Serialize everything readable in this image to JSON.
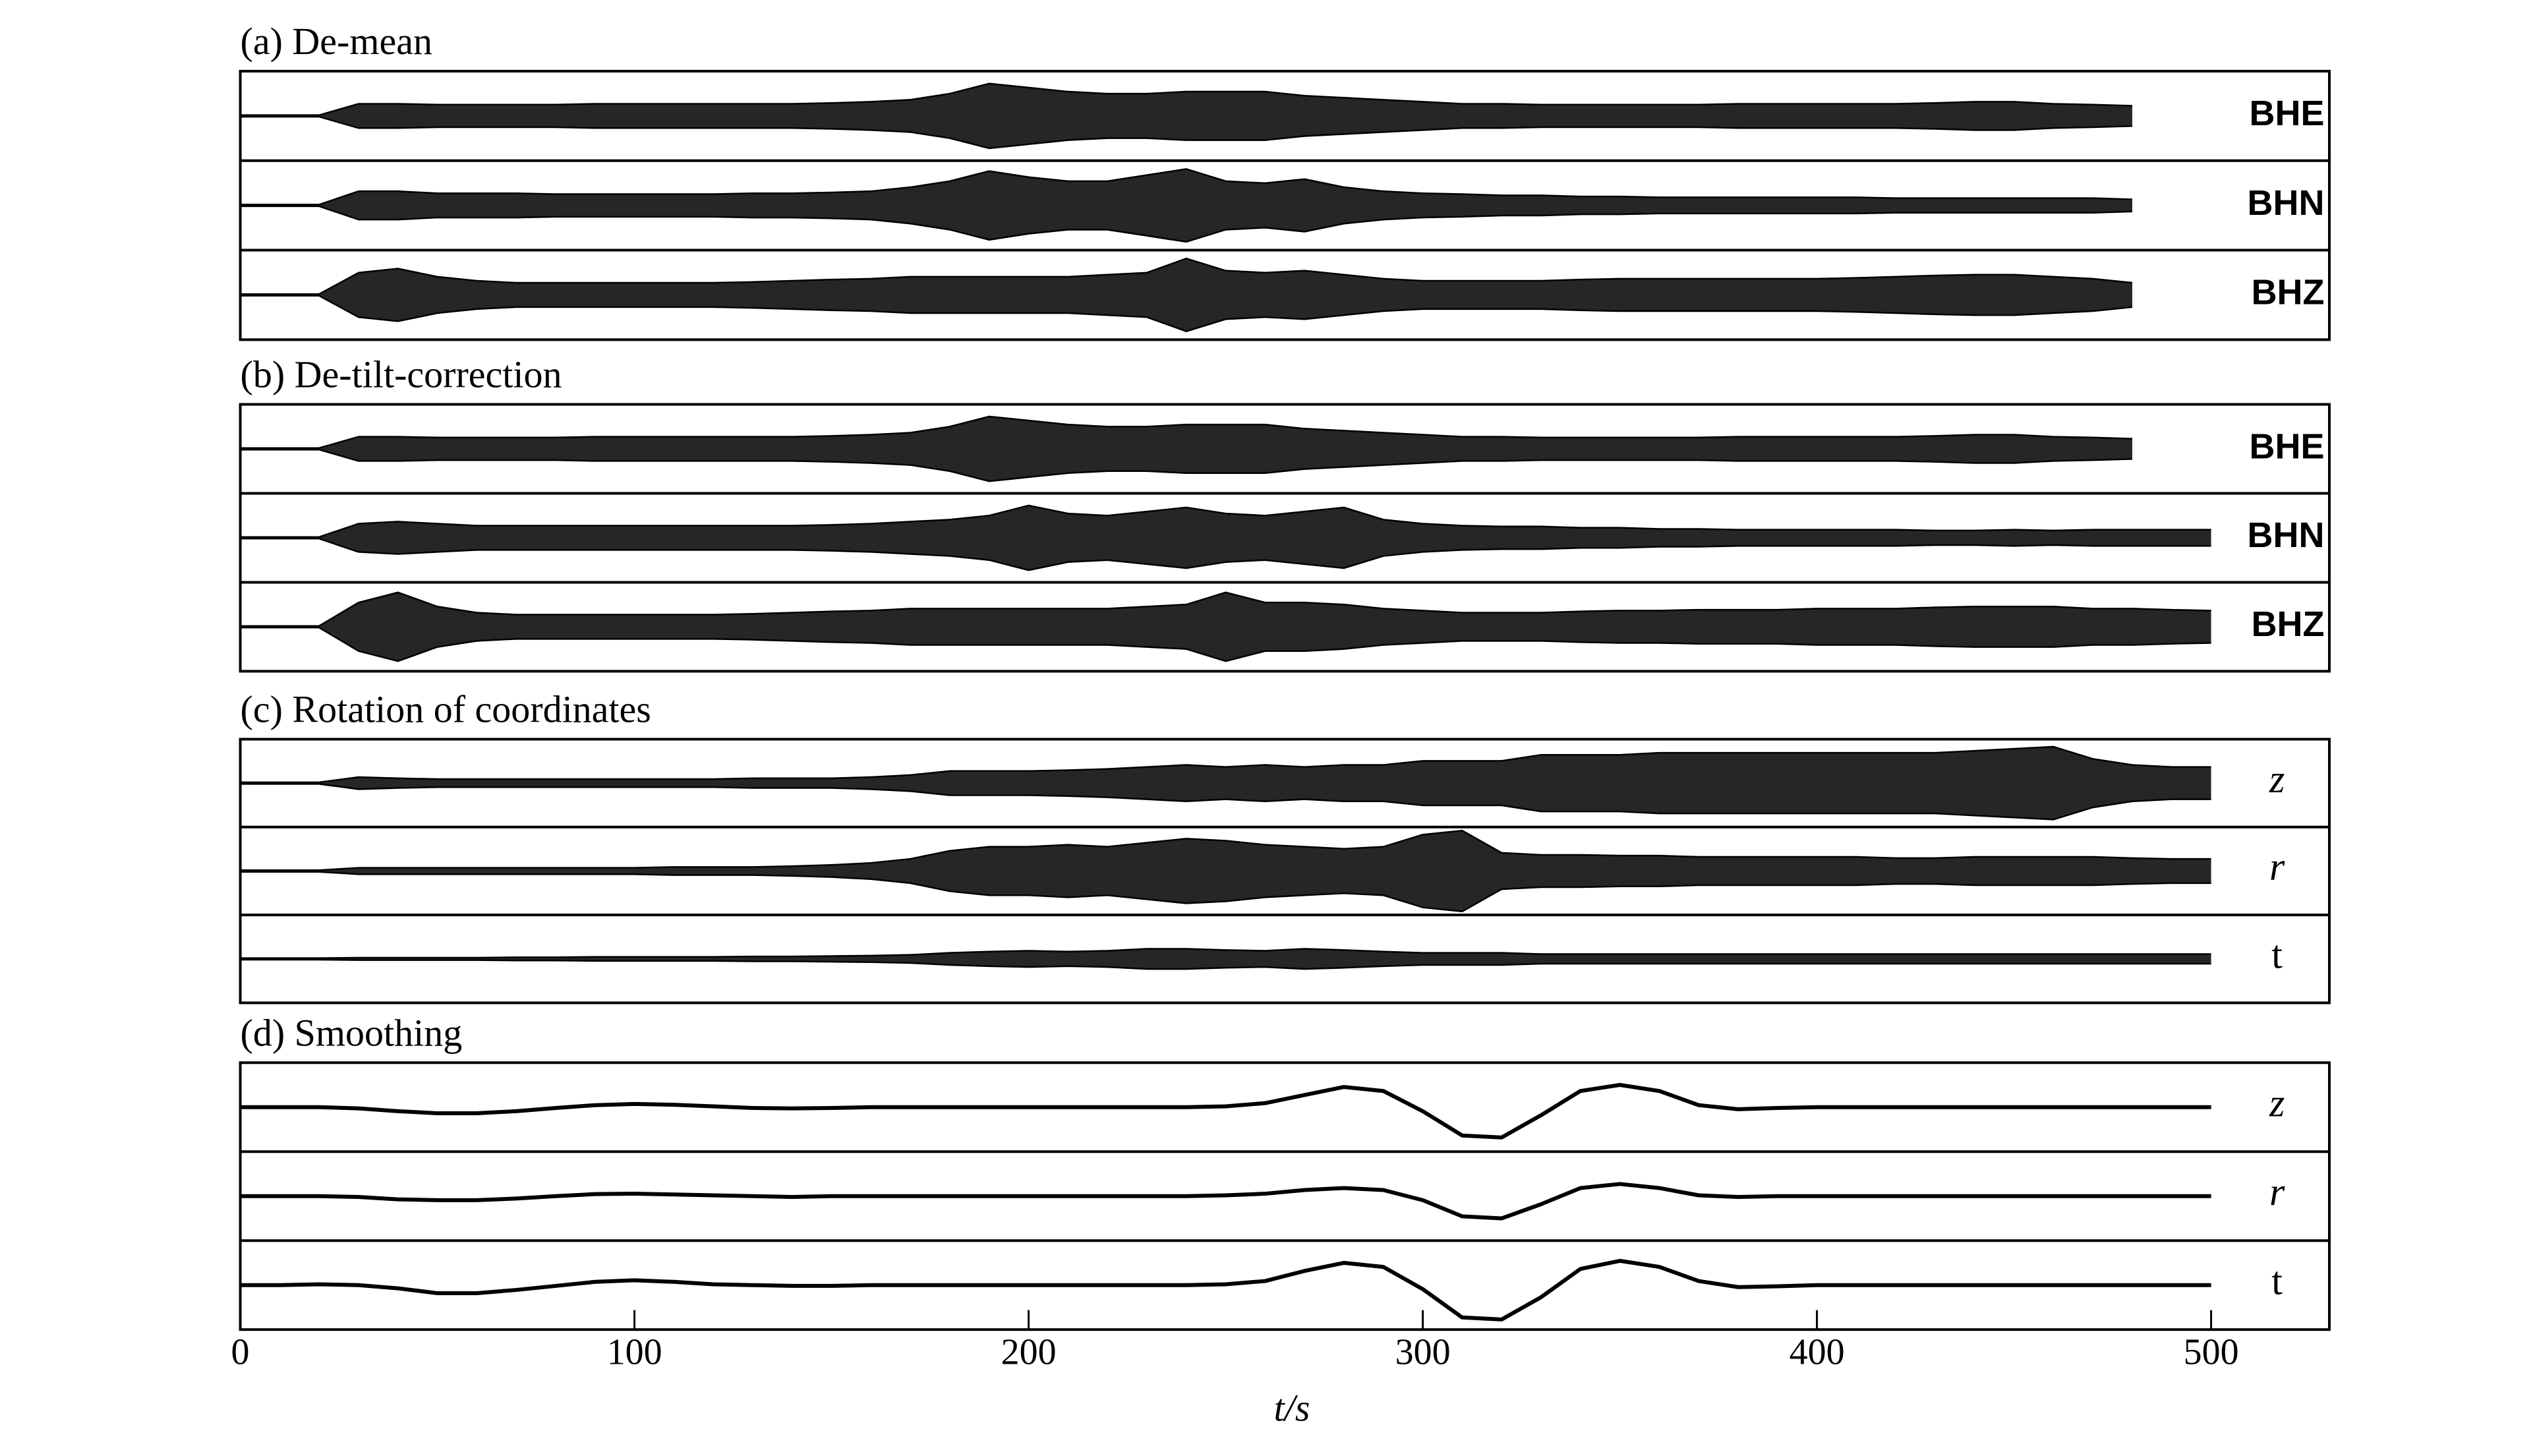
{
  "chart_data": {
    "type": "waveform",
    "color": "#000000",
    "xlabel": "t/s",
    "xlim": [
      0,
      530
    ],
    "xticks": [
      0,
      100,
      200,
      300,
      400,
      500
    ],
    "x": [
      0,
      10,
      20,
      30,
      40,
      50,
      60,
      70,
      80,
      90,
      100,
      110,
      120,
      130,
      140,
      150,
      160,
      170,
      180,
      190,
      200,
      210,
      220,
      230,
      240,
      250,
      260,
      270,
      280,
      290,
      300,
      310,
      320,
      330,
      340,
      350,
      360,
      370,
      380,
      390,
      400,
      410,
      420,
      430,
      440,
      450,
      460,
      470,
      480,
      490,
      500
    ],
    "panels": [
      {
        "title": "(a) De-mean",
        "kind": "envelope",
        "traces": [
          {
            "name": "BHE",
            "style": "bold",
            "values": [
              0.02,
              0.02,
              0.02,
              0.3,
              0.3,
              0.28,
              0.28,
              0.28,
              0.28,
              0.3,
              0.3,
              0.3,
              0.3,
              0.3,
              0.3,
              0.32,
              0.35,
              0.4,
              0.55,
              0.8,
              0.7,
              0.6,
              0.55,
              0.55,
              0.6,
              0.6,
              0.6,
              0.5,
              0.45,
              0.4,
              0.35,
              0.3,
              0.3,
              0.28,
              0.28,
              0.28,
              0.28,
              0.28,
              0.3,
              0.3,
              0.3,
              0.3,
              0.3,
              0.32,
              0.35,
              0.35,
              0.3,
              0.28,
              0.25,
              null,
              null
            ]
          },
          {
            "name": "BHN",
            "style": "bold",
            "values": [
              0.02,
              0.02,
              0.02,
              0.35,
              0.35,
              0.3,
              0.3,
              0.3,
              0.28,
              0.28,
              0.28,
              0.28,
              0.28,
              0.3,
              0.3,
              0.32,
              0.35,
              0.45,
              0.6,
              0.85,
              0.7,
              0.6,
              0.6,
              0.75,
              0.9,
              0.6,
              0.55,
              0.65,
              0.45,
              0.35,
              0.3,
              0.28,
              0.25,
              0.25,
              0.22,
              0.22,
              0.2,
              0.2,
              0.2,
              0.2,
              0.2,
              0.2,
              0.18,
              0.18,
              0.18,
              0.18,
              0.18,
              0.18,
              0.15,
              null,
              null
            ]
          },
          {
            "name": "BHZ",
            "style": "bold",
            "values": [
              0.02,
              0.02,
              0.02,
              0.55,
              0.65,
              0.45,
              0.35,
              0.3,
              0.3,
              0.3,
              0.3,
              0.3,
              0.3,
              0.32,
              0.35,
              0.38,
              0.4,
              0.45,
              0.45,
              0.45,
              0.45,
              0.45,
              0.5,
              0.55,
              0.9,
              0.6,
              0.55,
              0.6,
              0.5,
              0.4,
              0.35,
              0.35,
              0.35,
              0.35,
              0.38,
              0.4,
              0.4,
              0.4,
              0.4,
              0.4,
              0.4,
              0.42,
              0.45,
              0.48,
              0.5,
              0.5,
              0.45,
              0.4,
              0.3,
              null,
              null
            ]
          }
        ]
      },
      {
        "title": "(b) De-tilt-correction",
        "kind": "envelope",
        "traces": [
          {
            "name": "BHE",
            "style": "bold",
            "values": [
              0.02,
              0.02,
              0.02,
              0.3,
              0.3,
              0.28,
              0.28,
              0.28,
              0.28,
              0.3,
              0.3,
              0.3,
              0.3,
              0.3,
              0.3,
              0.32,
              0.35,
              0.4,
              0.55,
              0.8,
              0.7,
              0.6,
              0.55,
              0.55,
              0.6,
              0.6,
              0.6,
              0.5,
              0.45,
              0.4,
              0.35,
              0.3,
              0.3,
              0.28,
              0.28,
              0.28,
              0.28,
              0.28,
              0.3,
              0.3,
              0.3,
              0.3,
              0.3,
              0.32,
              0.35,
              0.35,
              0.3,
              0.28,
              0.25,
              null,
              null
            ]
          },
          {
            "name": "BHN",
            "style": "bold",
            "values": [
              0.02,
              0.02,
              0.02,
              0.35,
              0.4,
              0.35,
              0.3,
              0.3,
              0.3,
              0.3,
              0.3,
              0.3,
              0.3,
              0.3,
              0.3,
              0.32,
              0.35,
              0.4,
              0.45,
              0.55,
              0.8,
              0.6,
              0.55,
              0.65,
              0.75,
              0.6,
              0.55,
              0.65,
              0.75,
              0.45,
              0.35,
              0.3,
              0.28,
              0.28,
              0.25,
              0.25,
              0.22,
              0.22,
              0.2,
              0.2,
              0.2,
              0.2,
              0.2,
              0.18,
              0.18,
              0.2,
              0.18,
              0.2,
              0.2,
              0.2,
              0.2
            ]
          },
          {
            "name": "BHZ",
            "style": "bold",
            "values": [
              0.02,
              0.02,
              0.02,
              0.6,
              0.85,
              0.5,
              0.35,
              0.3,
              0.3,
              0.3,
              0.3,
              0.3,
              0.3,
              0.32,
              0.35,
              0.38,
              0.4,
              0.45,
              0.45,
              0.45,
              0.45,
              0.45,
              0.45,
              0.5,
              0.55,
              0.85,
              0.6,
              0.6,
              0.55,
              0.45,
              0.4,
              0.35,
              0.35,
              0.35,
              0.38,
              0.4,
              0.4,
              0.42,
              0.42,
              0.42,
              0.45,
              0.45,
              0.45,
              0.48,
              0.5,
              0.5,
              0.5,
              0.45,
              0.45,
              0.42,
              0.4
            ]
          }
        ]
      },
      {
        "title": "(c) Rotation of coordinates",
        "kind": "envelope",
        "traces": [
          {
            "name": "z",
            "style": "italic",
            "values": [
              0.02,
              0.02,
              0.02,
              0.15,
              0.12,
              0.1,
              0.1,
              0.1,
              0.1,
              0.1,
              0.1,
              0.1,
              0.1,
              0.12,
              0.12,
              0.12,
              0.15,
              0.2,
              0.3,
              0.3,
              0.3,
              0.32,
              0.35,
              0.4,
              0.45,
              0.4,
              0.45,
              0.4,
              0.45,
              0.45,
              0.55,
              0.55,
              0.55,
              0.7,
              0.7,
              0.7,
              0.75,
              0.75,
              0.75,
              0.75,
              0.75,
              0.75,
              0.75,
              0.75,
              0.8,
              0.85,
              0.9,
              0.6,
              0.45,
              0.4,
              0.4
            ]
          },
          {
            "name": "r",
            "style": "italic",
            "values": [
              0.02,
              0.02,
              0.02,
              0.08,
              0.08,
              0.08,
              0.08,
              0.08,
              0.08,
              0.08,
              0.08,
              0.1,
              0.1,
              0.1,
              0.12,
              0.15,
              0.2,
              0.3,
              0.5,
              0.6,
              0.6,
              0.65,
              0.6,
              0.7,
              0.8,
              0.75,
              0.65,
              0.6,
              0.55,
              0.6,
              0.9,
              1.0,
              0.45,
              0.4,
              0.4,
              0.38,
              0.38,
              0.35,
              0.35,
              0.35,
              0.35,
              0.35,
              0.32,
              0.32,
              0.35,
              0.35,
              0.35,
              0.35,
              0.32,
              0.3,
              0.3
            ]
          },
          {
            "name": "t",
            "style": "plain",
            "values": [
              0.02,
              0.02,
              0.02,
              0.03,
              0.03,
              0.03,
              0.03,
              0.04,
              0.04,
              0.05,
              0.05,
              0.05,
              0.05,
              0.06,
              0.06,
              0.07,
              0.08,
              0.1,
              0.15,
              0.18,
              0.2,
              0.18,
              0.2,
              0.25,
              0.25,
              0.22,
              0.2,
              0.25,
              0.22,
              0.18,
              0.15,
              0.15,
              0.15,
              0.12,
              0.12,
              0.12,
              0.12,
              0.12,
              0.12,
              0.12,
              0.12,
              0.12,
              0.12,
              0.12,
              0.12,
              0.12,
              0.12,
              0.12,
              0.12,
              0.12,
              0.12
            ]
          }
        ]
      },
      {
        "title": "(d) Smoothing",
        "kind": "signal",
        "traces": [
          {
            "name": "z",
            "style": "italic",
            "values": [
              0,
              0,
              0,
              -0.03,
              -0.1,
              -0.15,
              -0.15,
              -0.1,
              -0.02,
              0.05,
              0.08,
              0.06,
              0.02,
              -0.02,
              -0.03,
              -0.02,
              0,
              0,
              0,
              0,
              0,
              0,
              0,
              0,
              0,
              0.02,
              0.1,
              0.3,
              0.5,
              0.4,
              -0.1,
              -0.7,
              -0.75,
              -0.2,
              0.4,
              0.55,
              0.4,
              0.05,
              -0.05,
              -0.02,
              0,
              0,
              0,
              0,
              0,
              0,
              0,
              0,
              0,
              0,
              0
            ]
          },
          {
            "name": "r",
            "style": "italic",
            "values": [
              0,
              0,
              0,
              -0.02,
              -0.08,
              -0.1,
              -0.1,
              -0.06,
              0,
              0.05,
              0.06,
              0.04,
              0.02,
              0,
              -0.02,
              0,
              0,
              0,
              0,
              0,
              0,
              0,
              0,
              0,
              0,
              0.02,
              0.06,
              0.15,
              0.2,
              0.15,
              -0.1,
              -0.5,
              -0.55,
              -0.2,
              0.2,
              0.3,
              0.2,
              0.02,
              -0.02,
              0,
              0,
              0,
              0,
              0,
              0,
              0,
              0,
              0,
              0,
              0,
              0
            ]
          },
          {
            "name": "t",
            "style": "plain",
            "values": [
              0,
              0,
              0.02,
              0,
              -0.08,
              -0.2,
              -0.2,
              -0.12,
              -0.02,
              0.08,
              0.12,
              0.08,
              0.02,
              0,
              -0.02,
              -0.02,
              0,
              0,
              0,
              0,
              0,
              0,
              0,
              0,
              0,
              0.02,
              0.1,
              0.35,
              0.55,
              0.45,
              -0.1,
              -0.8,
              -0.85,
              -0.3,
              0.4,
              0.6,
              0.45,
              0.1,
              -0.05,
              -0.03,
              0,
              0,
              0,
              0,
              0,
              0,
              0,
              0,
              0,
              0,
              0
            ]
          }
        ]
      }
    ]
  }
}
